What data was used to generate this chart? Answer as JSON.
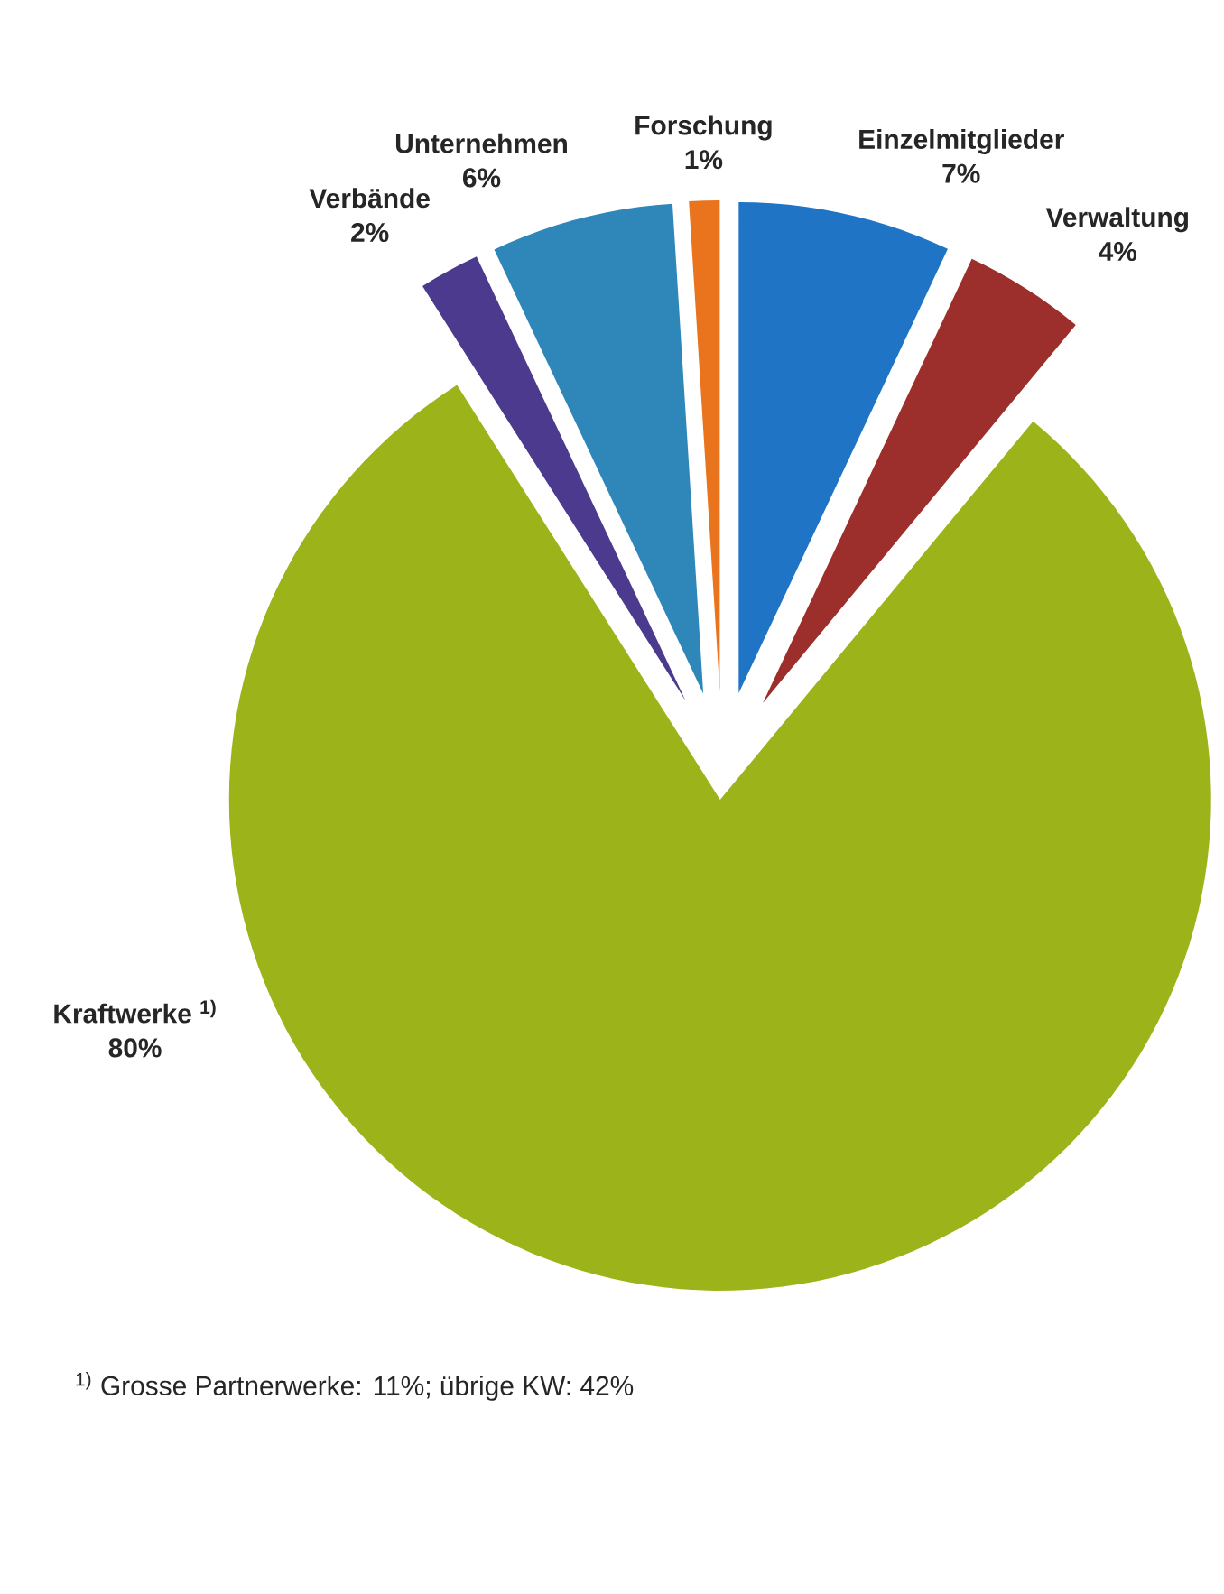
{
  "chart_data": {
    "type": "pie",
    "categories": [
      "Einzelmitglieder",
      "Verwaltung",
      "Kraftwerke $^{1)}$",
      "Verbände",
      "Unternehmen",
      "Forschung"
    ],
    "values": [
      7,
      4,
      80,
      2,
      6,
      1
    ],
    "value_labels": [
      "7%",
      "4%",
      "80%",
      "2%",
      "6%",
      "1%"
    ],
    "colors": [
      "#1f74c6",
      "#9c2f2b",
      "#9cb41a",
      "#4b3a8e",
      "#2f87b9",
      "#ea741d"
    ],
    "annotations": [
      "$^{1)}$ Grosse Partnerwerke: 11%; übrige KW: 42%"
    ]
  }
}
